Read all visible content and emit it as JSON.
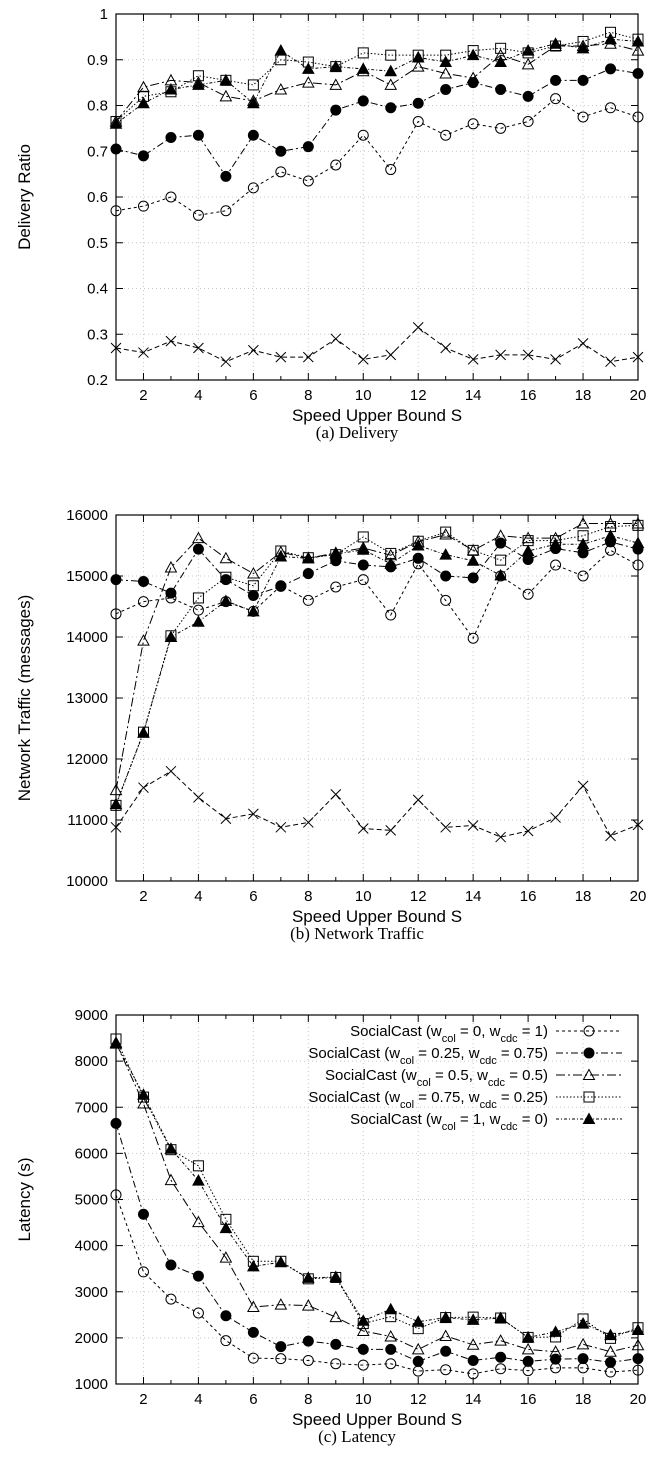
{
  "chart_data": [
    {
      "type": "line",
      "caption": "(a)  Delivery",
      "xlabel": "Speed Upper Bound S",
      "ylabel": "Delivery Ratio",
      "xlim": [
        1,
        20
      ],
      "ylim": [
        0.2,
        1
      ],
      "xticks": [
        2,
        4,
        6,
        8,
        10,
        12,
        14,
        16,
        18,
        20
      ],
      "yticks": [
        0.2,
        0.3,
        0.4,
        0.5,
        0.6,
        0.7,
        0.8,
        0.9,
        1
      ],
      "grid": true,
      "x": [
        1,
        2,
        3,
        4,
        5,
        6,
        7,
        8,
        9,
        10,
        11,
        12,
        13,
        14,
        15,
        16,
        17,
        18,
        19,
        20
      ],
      "series": [
        {
          "id": "open-circle",
          "values": [
            0.57,
            0.58,
            0.6,
            0.56,
            0.57,
            0.62,
            0.655,
            0.635,
            0.67,
            0.735,
            0.66,
            0.765,
            0.735,
            0.76,
            0.75,
            0.765,
            0.815,
            0.775,
            0.795,
            0.775
          ]
        },
        {
          "id": "filled-circle",
          "values": [
            0.705,
            0.69,
            0.73,
            0.735,
            0.645,
            0.735,
            0.7,
            0.71,
            0.79,
            0.81,
            0.795,
            0.805,
            0.835,
            0.85,
            0.835,
            0.82,
            0.855,
            0.855,
            0.88,
            0.87
          ]
        },
        {
          "id": "open-triangle",
          "values": [
            0.765,
            0.84,
            0.855,
            0.85,
            0.82,
            0.81,
            0.835,
            0.85,
            0.845,
            0.875,
            0.845,
            0.885,
            0.87,
            0.86,
            0.91,
            0.89,
            0.93,
            0.93,
            0.935,
            0.92
          ]
        },
        {
          "id": "open-square",
          "values": [
            0.765,
            0.82,
            0.83,
            0.865,
            0.855,
            0.845,
            0.9,
            0.895,
            0.885,
            0.915,
            0.91,
            0.91,
            0.91,
            0.92,
            0.925,
            0.915,
            0.93,
            0.94,
            0.96,
            0.945
          ]
        },
        {
          "id": "filled-triangle",
          "values": [
            0.76,
            0.805,
            0.835,
            0.845,
            0.855,
            0.805,
            0.92,
            0.88,
            0.885,
            0.88,
            0.875,
            0.905,
            0.895,
            0.91,
            0.895,
            0.92,
            0.935,
            0.925,
            0.945,
            0.94
          ]
        },
        {
          "id": "cross",
          "values": [
            0.27,
            0.26,
            0.285,
            0.27,
            0.24,
            0.265,
            0.25,
            0.25,
            0.29,
            0.245,
            0.255,
            0.315,
            0.27,
            0.245,
            0.255,
            0.255,
            0.245,
            0.28,
            0.24,
            0.25
          ]
        }
      ]
    },
    {
      "type": "line",
      "caption": "(b)  Network  Traffic",
      "xlabel": "Speed Upper Bound S",
      "ylabel": "Network Traffic (messages)",
      "xlim": [
        1,
        20
      ],
      "ylim": [
        10000,
        16000
      ],
      "xticks": [
        2,
        4,
        6,
        8,
        10,
        12,
        14,
        16,
        18,
        20
      ],
      "yticks": [
        10000,
        11000,
        12000,
        13000,
        14000,
        15000,
        16000
      ],
      "grid": true,
      "x": [
        1,
        2,
        3,
        4,
        5,
        6,
        7,
        8,
        9,
        10,
        11,
        12,
        13,
        14,
        15,
        16,
        17,
        18,
        19,
        20
      ],
      "series": [
        {
          "id": "open-circle",
          "values": [
            14380,
            14580,
            14640,
            14440,
            14580,
            14420,
            14840,
            14600,
            14820,
            14940,
            14360,
            15200,
            14600,
            13980,
            15000,
            14700,
            15180,
            15000,
            15420,
            15180
          ]
        },
        {
          "id": "filled-circle",
          "values": [
            14940,
            14910,
            14720,
            15440,
            14940,
            14680,
            14830,
            15040,
            15250,
            15180,
            15150,
            15290,
            15000,
            14970,
            15540,
            15270,
            15450,
            15380,
            15560,
            15440
          ]
        },
        {
          "id": "open-triangle",
          "values": [
            11490,
            13940,
            15140,
            15620,
            15290,
            15040,
            15390,
            15290,
            15380,
            15460,
            15340,
            15560,
            15680,
            15420,
            15660,
            15620,
            15620,
            15860,
            15860,
            15860
          ]
        },
        {
          "id": "open-square",
          "values": [
            11240,
            12440,
            14020,
            14640,
            14980,
            14840,
            15410,
            15300,
            15350,
            15640,
            15370,
            15570,
            15720,
            15420,
            15260,
            15580,
            15580,
            15660,
            15810,
            15830
          ]
        },
        {
          "id": "filled-triangle",
          "values": [
            11260,
            12430,
            14000,
            14250,
            14590,
            14420,
            15320,
            15290,
            15360,
            15430,
            15200,
            15500,
            15350,
            15250,
            15010,
            15410,
            15520,
            15520,
            15660,
            15540
          ]
        },
        {
          "id": "cross",
          "values": [
            10880,
            11530,
            11800,
            11370,
            11020,
            11100,
            10880,
            10960,
            11420,
            10860,
            10830,
            11330,
            10880,
            10910,
            10720,
            10820,
            11040,
            11560,
            10740,
            10920
          ]
        }
      ]
    },
    {
      "type": "line",
      "caption": "(c)  Latency",
      "xlabel": "Speed Upper Bound S",
      "ylabel": "Latency (s)",
      "xlim": [
        1,
        20
      ],
      "ylim": [
        1000,
        9000
      ],
      "xticks": [
        2,
        4,
        6,
        8,
        10,
        12,
        14,
        16,
        18,
        20
      ],
      "yticks": [
        1000,
        2000,
        3000,
        4000,
        5000,
        6000,
        7000,
        8000,
        9000
      ],
      "grid": true,
      "legend_position": "top-right",
      "x": [
        1,
        2,
        3,
        4,
        5,
        6,
        7,
        8,
        9,
        10,
        11,
        12,
        13,
        14,
        15,
        16,
        17,
        18,
        19,
        20
      ],
      "series": [
        {
          "id": "open-circle",
          "name": "SocialCast (w",
          "name_parts": [
            "col",
            " = 0, w",
            "cdc",
            " = 1)"
          ],
          "values": [
            5100,
            3430,
            2840,
            2540,
            1940,
            1560,
            1550,
            1510,
            1440,
            1410,
            1440,
            1280,
            1310,
            1220,
            1330,
            1290,
            1350,
            1350,
            1260,
            1300
          ]
        },
        {
          "id": "filled-circle",
          "name": "SocialCast (w",
          "name_parts": [
            "col",
            " = 0.25, w",
            "cdc",
            " = 0.75)"
          ],
          "values": [
            6650,
            4680,
            3580,
            3340,
            2480,
            2120,
            1810,
            1930,
            1860,
            1750,
            1750,
            1490,
            1710,
            1510,
            1580,
            1490,
            1540,
            1550,
            1470,
            1550
          ]
        },
        {
          "id": "open-triangle",
          "name": "SocialCast (w",
          "name_parts": [
            "col",
            " = 0.5, w",
            "cdc",
            " = 0.5)"
          ],
          "values": [
            8400,
            7080,
            5420,
            4510,
            3740,
            2670,
            2720,
            2700,
            2450,
            2150,
            2030,
            1750,
            2040,
            1850,
            1940,
            1750,
            1700,
            1860,
            1700,
            1840
          ]
        },
        {
          "id": "open-square",
          "name": "SocialCast (w",
          "name_parts": [
            "col",
            " = 0.75, w",
            "cdc",
            " = 0.25)"
          ],
          "values": [
            8480,
            7220,
            6080,
            5730,
            4570,
            3660,
            3660,
            3280,
            3310,
            2310,
            2460,
            2200,
            2440,
            2450,
            2430,
            2010,
            2020,
            2410,
            1990,
            2220
          ]
        },
        {
          "id": "filled-triangle",
          "name": "SocialCast (w",
          "name_parts": [
            "col",
            " = 1, w",
            "cdc",
            " = 0)"
          ],
          "values": [
            8380,
            7270,
            6100,
            5410,
            4380,
            3550,
            3640,
            3300,
            3320,
            2370,
            2620,
            2350,
            2440,
            2390,
            2430,
            2010,
            2130,
            2310,
            2060,
            2170
          ]
        }
      ]
    }
  ]
}
